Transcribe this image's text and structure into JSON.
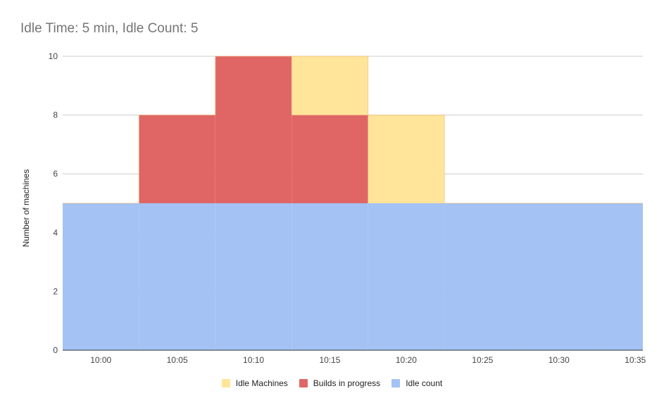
{
  "chart_data": {
    "type": "area",
    "title": "Idle Time: 5 min, Idle Count: 5",
    "xlabel": "",
    "ylabel": "Number of machines",
    "categories": [
      "10:00",
      "10:05",
      "10:10",
      "10:15",
      "10:20",
      "10:25",
      "10:30",
      "10:35"
    ],
    "ylim": [
      0,
      10
    ],
    "yticks": [
      0,
      2,
      4,
      6,
      8,
      10
    ],
    "grid": true,
    "stacked": true,
    "step": true,
    "legend_position": "bottom",
    "series": [
      {
        "name": "Idle count",
        "color": "#a4c2f4",
        "values": [
          5,
          5,
          5,
          5,
          5,
          5,
          5,
          5
        ]
      },
      {
        "name": "Builds in progress",
        "color": "#e06666",
        "values": [
          0,
          3,
          5,
          3,
          0,
          0,
          0,
          0
        ]
      },
      {
        "name": "Idle Machines",
        "color": "#ffe599",
        "values": [
          0,
          0,
          0,
          2,
          3,
          0,
          0,
          0
        ]
      }
    ],
    "legend": [
      "Idle Machines",
      "Builds in progress",
      "Idle count"
    ]
  }
}
